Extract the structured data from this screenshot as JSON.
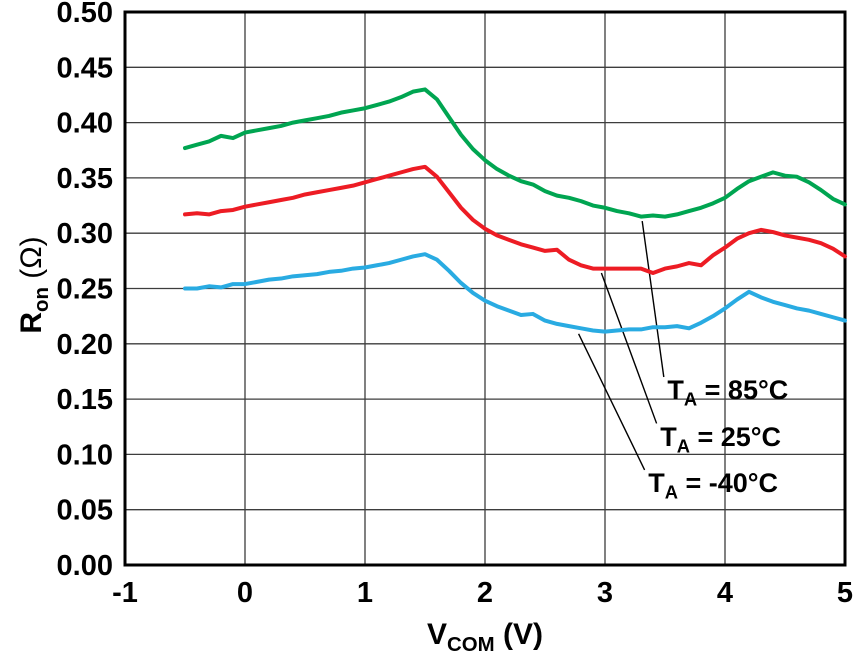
{
  "chart_data": {
    "type": "line",
    "title": "",
    "xlabel": {
      "main": "V",
      "sub": "COM",
      "unit": " (V)"
    },
    "ylabel": {
      "main": "R",
      "sub": "on",
      "unit": " (Ω)"
    },
    "xlim": [
      -1,
      5
    ],
    "ylim": [
      0,
      0.5
    ],
    "grid": true,
    "legend_position": "annotated-on-plot",
    "x_ticks": [
      -1,
      0,
      1,
      2,
      3,
      4,
      5
    ],
    "x_tick_labels": [
      "-1",
      "0",
      "1",
      "2",
      "3",
      "4",
      "5"
    ],
    "y_ticks": [
      0,
      0.05,
      0.1,
      0.15,
      0.2,
      0.25,
      0.3,
      0.35,
      0.4,
      0.45,
      0.5
    ],
    "y_tick_labels": [
      "0.00",
      "0.05",
      "0.10",
      "0.15",
      "0.20",
      "0.25",
      "0.30",
      "0.35",
      "0.40",
      "0.45",
      "0.50"
    ],
    "x": [
      -0.5,
      -0.4,
      -0.3,
      -0.2,
      -0.1,
      0,
      0.1,
      0.2,
      0.3,
      0.4,
      0.5,
      0.6,
      0.7,
      0.8,
      0.9,
      1,
      1.1,
      1.2,
      1.3,
      1.4,
      1.5,
      1.6,
      1.7,
      1.8,
      1.9,
      2,
      2.1,
      2.2,
      2.3,
      2.4,
      2.5,
      2.6,
      2.7,
      2.8,
      2.9,
      3,
      3.1,
      3.2,
      3.3,
      3.4,
      3.5,
      3.6,
      3.7,
      3.8,
      3.9,
      4,
      4.1,
      4.2,
      4.3,
      4.4,
      4.5,
      4.6,
      4.7,
      4.8,
      4.9,
      5
    ],
    "series": [
      {
        "name": "TA = 85°C",
        "color": "#00A551",
        "values": [
          0.377,
          0.38,
          0.383,
          0.388,
          0.386,
          0.391,
          0.393,
          0.395,
          0.397,
          0.4,
          0.402,
          0.404,
          0.406,
          0.409,
          0.411,
          0.413,
          0.416,
          0.419,
          0.423,
          0.428,
          0.43,
          0.421,
          0.405,
          0.389,
          0.376,
          0.366,
          0.358,
          0.352,
          0.347,
          0.344,
          0.338,
          0.334,
          0.332,
          0.329,
          0.325,
          0.323,
          0.32,
          0.318,
          0.315,
          0.316,
          0.315,
          0.317,
          0.32,
          0.323,
          0.327,
          0.332,
          0.34,
          0.347,
          0.351,
          0.355,
          0.352,
          0.351,
          0.346,
          0.339,
          0.331,
          0.326
        ]
      },
      {
        "name": "TA = 25°C",
        "color": "#ED1C24",
        "values": [
          0.317,
          0.318,
          0.317,
          0.32,
          0.321,
          0.324,
          0.326,
          0.328,
          0.33,
          0.332,
          0.335,
          0.337,
          0.339,
          0.341,
          0.343,
          0.346,
          0.349,
          0.352,
          0.355,
          0.358,
          0.36,
          0.351,
          0.337,
          0.323,
          0.312,
          0.304,
          0.298,
          0.294,
          0.29,
          0.287,
          0.284,
          0.285,
          0.276,
          0.271,
          0.268,
          0.268,
          0.268,
          0.268,
          0.268,
          0.264,
          0.268,
          0.27,
          0.273,
          0.271,
          0.28,
          0.287,
          0.295,
          0.3,
          0.303,
          0.301,
          0.298,
          0.296,
          0.294,
          0.291,
          0.286,
          0.279
        ]
      },
      {
        "name": "TA = -40°C",
        "color": "#29ABE2",
        "values": [
          0.25,
          0.25,
          0.252,
          0.251,
          0.254,
          0.254,
          0.256,
          0.258,
          0.259,
          0.261,
          0.262,
          0.263,
          0.265,
          0.266,
          0.268,
          0.269,
          0.271,
          0.273,
          0.276,
          0.279,
          0.281,
          0.276,
          0.266,
          0.255,
          0.246,
          0.239,
          0.234,
          0.23,
          0.226,
          0.227,
          0.221,
          0.218,
          0.216,
          0.214,
          0.212,
          0.211,
          0.212,
          0.213,
          0.213,
          0.215,
          0.215,
          0.216,
          0.214,
          0.219,
          0.225,
          0.232,
          0.24,
          0.247,
          0.242,
          0.238,
          0.235,
          0.232,
          0.23,
          0.227,
          0.224,
          0.221
        ]
      }
    ],
    "annotations": [
      {
        "pre": "T",
        "sub": "A",
        "post": " = 85°C",
        "tx": 3.52,
        "ty": 0.158,
        "lx1": 3.49,
        "ly1": 0.17,
        "lx2": 3.31,
        "ly2": 0.311
      },
      {
        "pre": "T",
        "sub": "A",
        "post": " = 25°C",
        "tx": 3.46,
        "ty": 0.116,
        "lx1": 3.43,
        "ly1": 0.128,
        "lx2": 2.97,
        "ly2": 0.264
      },
      {
        "pre": "T",
        "sub": "A",
        "post": " = -40°C",
        "tx": 3.36,
        "ty": 0.074,
        "lx1": 3.33,
        "ly1": 0.086,
        "lx2": 2.78,
        "ly2": 0.209
      }
    ],
    "style": {
      "grid_color": "#3d3d3d",
      "border_color": "#000000",
      "tick_label_color": "#000000",
      "line_width": 4,
      "plot_background": "#ffffff"
    }
  }
}
